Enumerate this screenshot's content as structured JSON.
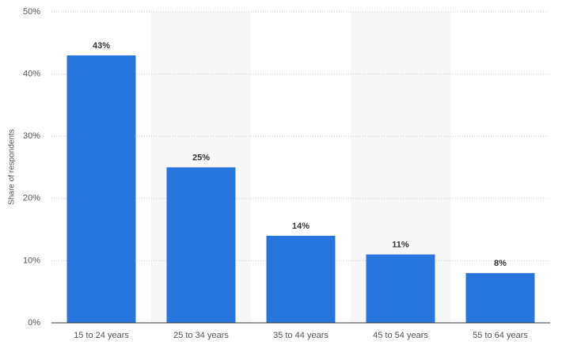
{
  "chart_data": {
    "type": "bar",
    "y_label": "Share of respondents",
    "categories": [
      "15 to 24 years",
      "25 to 34 years",
      "35 to 44 years",
      "45 to 54 years",
      "55 to 64 years"
    ],
    "values": [
      43,
      25,
      14,
      11,
      8
    ],
    "value_labels": [
      "43%",
      "25%",
      "14%",
      "11%",
      "8%"
    ],
    "color": "#2876dd",
    "ylim": [
      0,
      50
    ],
    "yticks": [
      {
        "value": 0,
        "label": "0%"
      },
      {
        "value": 10,
        "label": "10%"
      },
      {
        "value": 20,
        "label": "20%"
      },
      {
        "value": 30,
        "label": "30%"
      },
      {
        "value": 40,
        "label": "40%"
      },
      {
        "value": 50,
        "label": "50%"
      }
    ],
    "grid": true
  }
}
